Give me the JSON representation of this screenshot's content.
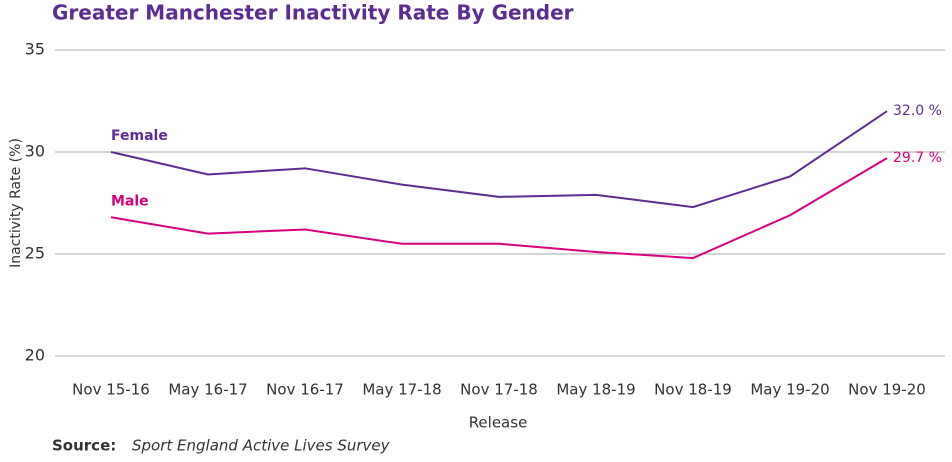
{
  "chart_data": {
    "type": "line",
    "title": "Greater Manchester Inactivity Rate By Gender",
    "x_label": "Release",
    "y_label": "Inactivity Rate (%)",
    "categories": [
      "Nov 15-16",
      "May 16-17",
      "Nov 16-17",
      "May 17-18",
      "Nov 17-18",
      "May 18-19",
      "Nov 18-19",
      "May 19-20",
      "Nov 19-20"
    ],
    "series": [
      {
        "name": "Female",
        "color": "#5c2d91",
        "values": [
          30.0,
          28.9,
          29.2,
          28.4,
          27.8,
          27.9,
          27.3,
          28.8,
          32.0
        ],
        "value_labels": [
          null,
          null,
          null,
          null,
          null,
          null,
          null,
          null,
          "32.0 %"
        ]
      },
      {
        "name": "Male",
        "color": "#d6007e",
        "values": [
          26.8,
          26.0,
          26.2,
          25.5,
          25.5,
          25.1,
          24.8,
          26.9,
          29.7
        ],
        "value_labels": [
          null,
          null,
          null,
          null,
          null,
          null,
          null,
          null,
          "29.7 %"
        ]
      }
    ],
    "ylim": [
      20,
      35
    ],
    "yticks": [
      20,
      25,
      30,
      35
    ],
    "grid": true,
    "source_label": "Source:",
    "source": "Sport England Active Lives Survey"
  }
}
